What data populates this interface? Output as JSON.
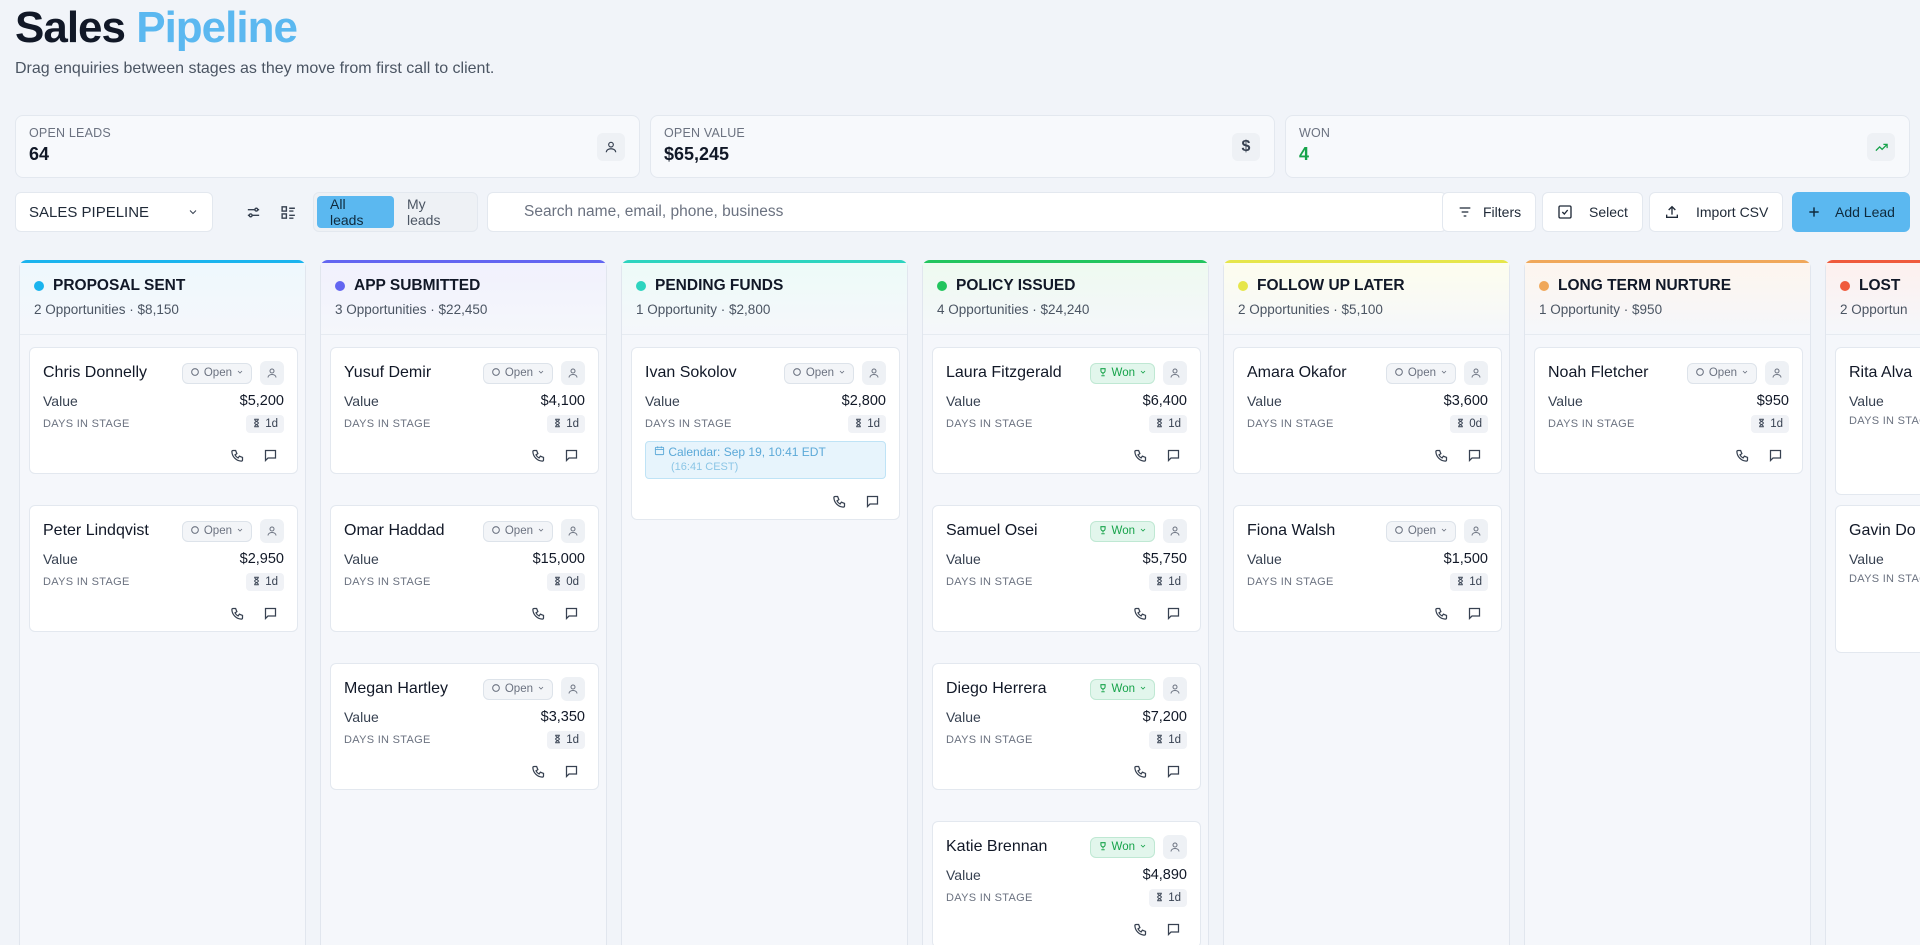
{
  "header": {
    "title_part1": "Sales",
    "title_part2": "Pipeline",
    "subtitle": "Drag enquiries between stages as they move from first call to client."
  },
  "stats": [
    {
      "label": "OPEN LEADS",
      "value": "64",
      "icon": "user-icon"
    },
    {
      "label": "OPEN VALUE",
      "value": "$65,245",
      "icon": "dollar-icon"
    },
    {
      "label": "WON",
      "value": "4",
      "icon": "trending-up-icon"
    }
  ],
  "toolbar": {
    "pipeline_select": "SALES PIPELINE",
    "all_leads": "All leads",
    "my_leads": "My leads",
    "search_placeholder": "Search name, email, phone, business",
    "filters": "Filters",
    "select": "Select",
    "import_csv": "Import CSV",
    "add_lead": "Add Lead"
  },
  "labels": {
    "value": "Value",
    "days_in_stage": "DAYS IN STAGE",
    "open": "Open",
    "won": "Won"
  },
  "colors": {
    "accent": "#5bb8f0",
    "won_green": "#16a34a",
    "proposal_sent": "#1ab4ee",
    "app_submitted": "#6366f1",
    "pending_funds": "#2dd4bf",
    "policy_issued": "#22c55e",
    "follow_up_later": "#e6e64a",
    "long_term_nurture": "#f0a85a",
    "lost": "#ef5a3c"
  },
  "columns": [
    {
      "title": "PROPOSAL SENT",
      "summary": "2 Opportunities · $8,150",
      "cards": [
        {
          "name": "Chris Donnelly",
          "status": "Open",
          "value": "$5,200",
          "days": "1d"
        },
        {
          "name": "Peter Lindqvist",
          "status": "Open",
          "value": "$2,950",
          "days": "1d"
        }
      ]
    },
    {
      "title": "APP SUBMITTED",
      "summary": "3 Opportunities · $22,450",
      "cards": [
        {
          "name": "Yusuf Demir",
          "status": "Open",
          "value": "$4,100",
          "days": "1d"
        },
        {
          "name": "Omar Haddad",
          "status": "Open",
          "value": "$15,000",
          "days": "0d"
        },
        {
          "name": "Megan Hartley",
          "status": "Open",
          "value": "$3,350",
          "days": "1d"
        }
      ]
    },
    {
      "title": "PENDING FUNDS",
      "summary": "1 Opportunity · $2,800",
      "cards": [
        {
          "name": "Ivan Sokolov",
          "status": "Open",
          "value": "$2,800",
          "days": "1d",
          "calendar": "Calendar: Sep 19, 10:41 EDT",
          "calendar_sub": "(16:41 CEST)"
        }
      ]
    },
    {
      "title": "POLICY ISSUED",
      "summary": "4 Opportunities · $24,240",
      "cards": [
        {
          "name": "Laura Fitzgerald",
          "status": "Won",
          "value": "$6,400",
          "days": "1d"
        },
        {
          "name": "Samuel Osei",
          "status": "Won",
          "value": "$5,750",
          "days": "1d"
        },
        {
          "name": "Diego Herrera",
          "status": "Won",
          "value": "$7,200",
          "days": "1d"
        },
        {
          "name": "Katie Brennan",
          "status": "Won",
          "value": "$4,890",
          "days": "1d"
        }
      ]
    },
    {
      "title": "FOLLOW UP LATER",
      "summary": "2 Opportunities · $5,100",
      "cards": [
        {
          "name": "Amara Okafor",
          "status": "Open",
          "value": "$3,600",
          "days": "0d"
        },
        {
          "name": "Fiona Walsh",
          "status": "Open",
          "value": "$1,500",
          "days": "1d"
        }
      ]
    },
    {
      "title": "LONG TERM NURTURE",
      "summary": "1 Opportunity · $950",
      "cards": [
        {
          "name": "Noah Fletcher",
          "status": "Open",
          "value": "$950",
          "days": "1d"
        }
      ]
    },
    {
      "title": "LOST",
      "summary": "2 Opportun",
      "cards": [
        {
          "name": "Rita Alva",
          "partial": true
        },
        {
          "name": "Gavin Do",
          "partial": true
        }
      ]
    }
  ]
}
